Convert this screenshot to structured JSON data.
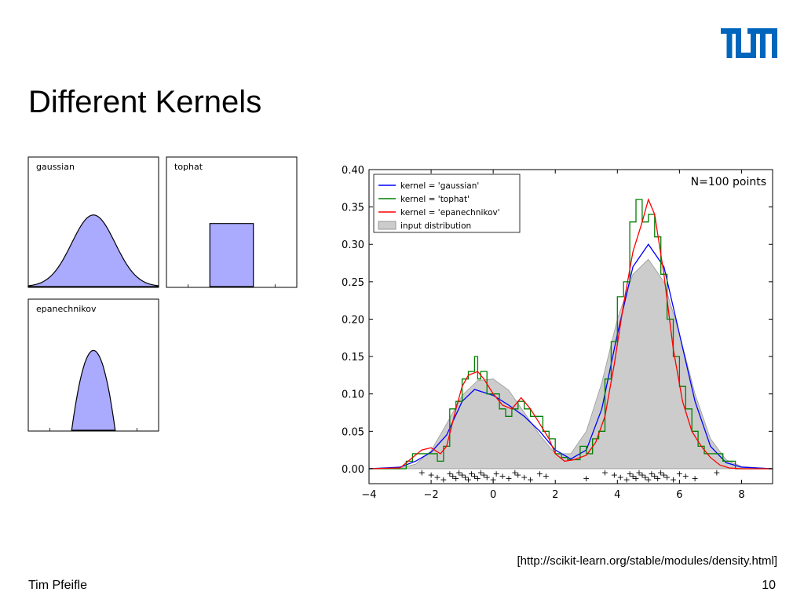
{
  "slide": {
    "title": "Different Kernels",
    "logo_text": "TUM",
    "source": "[http://scikit-learn.org/stable/modules/density.html]",
    "author": "Tim Pfeifle",
    "page": "10",
    "accent_color": "#0065bd"
  },
  "chart_data": [
    {
      "type": "area",
      "panels": [
        {
          "label": "gaussian",
          "shape": "gaussian"
        },
        {
          "label": "tophat",
          "shape": "tophat"
        },
        {
          "label": "epanechnikov",
          "shape": "epanechnikov"
        }
      ],
      "fill_color": "#aaaaff"
    },
    {
      "type": "line",
      "annotation": "N=100 points",
      "xlim": [
        -4,
        9
      ],
      "ylim": [
        -0.02,
        0.4
      ],
      "x_ticks": [
        -4,
        -2,
        0,
        2,
        4,
        6,
        8
      ],
      "y_ticks": [
        0.0,
        0.05,
        0.1,
        0.15,
        0.2,
        0.25,
        0.3,
        0.35,
        0.4
      ],
      "y_tick_labels": [
        "0.00",
        "0.05",
        "0.10",
        "0.15",
        "0.20",
        "0.25",
        "0.30",
        "0.35",
        "0.40"
      ],
      "x_tick_labels": [
        "−4",
        "−2",
        "0",
        "2",
        "4",
        "6",
        "8"
      ],
      "legend_position": "top-left",
      "series": [
        {
          "name": "kernel = 'gaussian'",
          "color": "#0000ff",
          "x": [
            -4,
            -3,
            -2.5,
            -2,
            -1.5,
            -1,
            -0.6,
            0,
            0.5,
            1,
            1.5,
            2,
            2.5,
            3,
            3.5,
            4,
            4.5,
            5,
            5.5,
            6,
            6.5,
            7,
            7.5,
            8,
            9
          ],
          "y": [
            0,
            0.002,
            0.01,
            0.022,
            0.045,
            0.09,
            0.106,
            0.098,
            0.085,
            0.07,
            0.05,
            0.025,
            0.013,
            0.025,
            0.08,
            0.18,
            0.27,
            0.3,
            0.27,
            0.18,
            0.09,
            0.03,
            0.008,
            0.002,
            0
          ]
        },
        {
          "name": "kernel = 'tophat'",
          "color": "#008000",
          "x": [
            -4,
            -2.8,
            -2.6,
            -2.4,
            -2.2,
            -2,
            -1.8,
            -1.6,
            -1.4,
            -1.2,
            -1,
            -0.8,
            -0.6,
            -0.5,
            -0.4,
            -0.2,
            0,
            0.2,
            0.4,
            0.6,
            0.8,
            1,
            1.2,
            1.4,
            1.6,
            1.8,
            2,
            2.2,
            2.4,
            2.6,
            2.8,
            3,
            3.2,
            3.4,
            3.6,
            3.8,
            4,
            4.2,
            4.4,
            4.6,
            4.8,
            5,
            5.2,
            5.4,
            5.6,
            5.8,
            6,
            6.2,
            6.4,
            6.6,
            6.8,
            7,
            7.2,
            7.4,
            7.6,
            7.8,
            9
          ],
          "y": [
            0,
            0.01,
            0.02,
            0.02,
            0.02,
            0.02,
            0.01,
            0.03,
            0.08,
            0.09,
            0.12,
            0.13,
            0.15,
            0.12,
            0.13,
            0.1,
            0.1,
            0.08,
            0.07,
            0.08,
            0.09,
            0.08,
            0.07,
            0.07,
            0.05,
            0.04,
            0.02,
            0.015,
            0.012,
            0.012,
            0.03,
            0.02,
            0.04,
            0.05,
            0.12,
            0.17,
            0.23,
            0.25,
            0.33,
            0.36,
            0.33,
            0.34,
            0.31,
            0.26,
            0.2,
            0.15,
            0.11,
            0.08,
            0.05,
            0.03,
            0.02,
            0.02,
            0.02,
            0.01,
            0.01,
            0,
            0
          ]
        },
        {
          "name": "kernel = 'epanechnikov'",
          "color": "#ff0000",
          "x": [
            -4,
            -3,
            -2.6,
            -2.3,
            -2,
            -1.7,
            -1.5,
            -1.2,
            -1,
            -0.8,
            -0.5,
            -0.3,
            0,
            0.3,
            0.6,
            0.9,
            1.2,
            1.5,
            1.8,
            2,
            2.3,
            2.6,
            3,
            3.3,
            3.6,
            3.9,
            4.2,
            4.5,
            4.8,
            5,
            5.2,
            5.5,
            5.8,
            6.1,
            6.4,
            6.7,
            7,
            7.3,
            7.6,
            8,
            9
          ],
          "y": [
            0,
            0.001,
            0.015,
            0.025,
            0.028,
            0.02,
            0.03,
            0.08,
            0.11,
            0.125,
            0.13,
            0.12,
            0.1,
            0.085,
            0.08,
            0.095,
            0.08,
            0.06,
            0.04,
            0.02,
            0.01,
            0.012,
            0.018,
            0.035,
            0.07,
            0.14,
            0.22,
            0.29,
            0.33,
            0.36,
            0.34,
            0.26,
            0.16,
            0.09,
            0.05,
            0.03,
            0.015,
            0.005,
            0.001,
            0,
            0
          ]
        }
      ],
      "input_distribution": {
        "name": "input distribution",
        "color": "#cccccc",
        "x": [
          -4,
          -3,
          -2.5,
          -2,
          -1.5,
          -1,
          -0.5,
          0,
          0.5,
          1,
          1.5,
          2,
          2.5,
          3,
          3.5,
          4,
          4.5,
          5,
          5.5,
          6,
          6.5,
          7,
          7.5,
          8,
          9
        ],
        "y": [
          0,
          0.001,
          0.006,
          0.024,
          0.06,
          0.098,
          0.118,
          0.12,
          0.105,
          0.075,
          0.045,
          0.02,
          0.02,
          0.05,
          0.115,
          0.2,
          0.26,
          0.28,
          0.25,
          0.18,
          0.1,
          0.04,
          0.012,
          0.003,
          0
        ]
      },
      "sample_points": {
        "marker": "+",
        "x": [
          -2.3,
          -2,
          -1.8,
          -1.6,
          -1.4,
          -1.3,
          -1.2,
          -1.1,
          -1,
          -0.9,
          -0.8,
          -0.7,
          -0.6,
          -0.5,
          -0.4,
          -0.3,
          -0.2,
          0,
          0.1,
          0.3,
          0.5,
          0.7,
          0.8,
          1,
          1.2,
          1.5,
          1.7,
          3,
          3.6,
          3.9,
          4.1,
          4.3,
          4.4,
          4.5,
          4.6,
          4.7,
          4.8,
          4.9,
          5,
          5.1,
          5.2,
          5.3,
          5.4,
          5.5,
          5.6,
          5.8,
          6,
          6.2,
          6.5,
          7.2
        ]
      }
    }
  ]
}
